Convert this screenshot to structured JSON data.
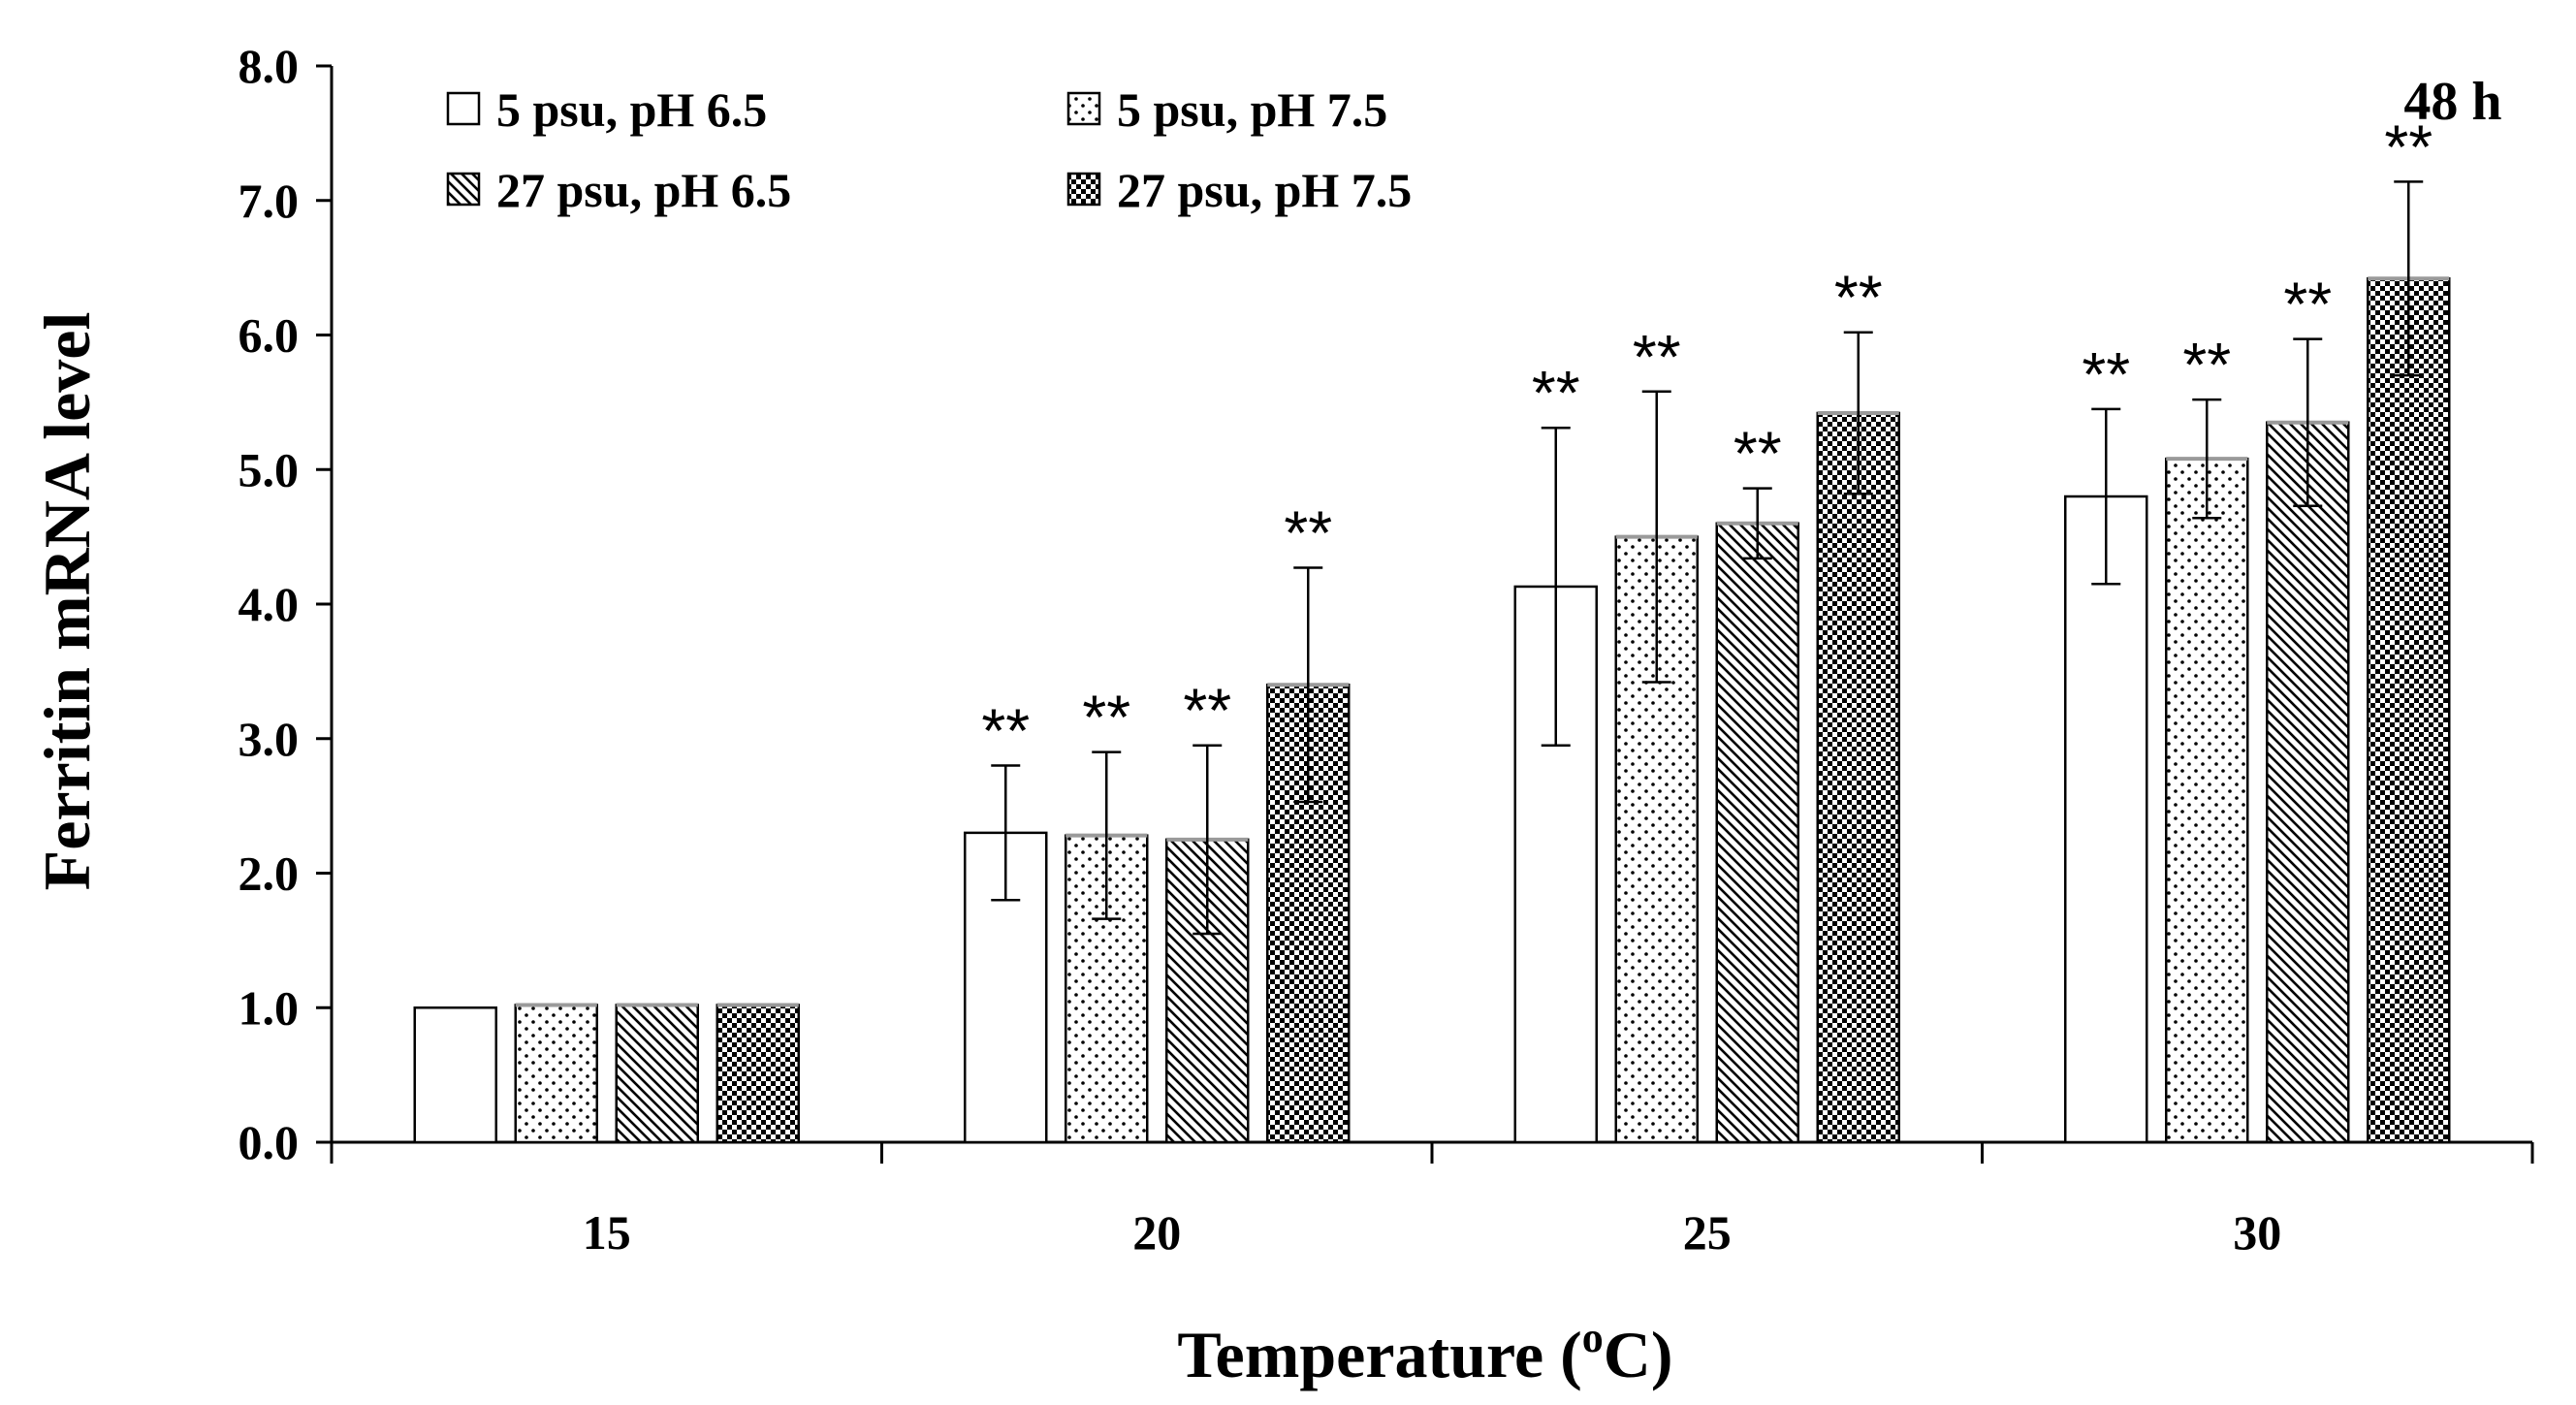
{
  "chart_data": {
    "type": "bar",
    "title": "",
    "annotation": "48 h",
    "xlabel": "Temperature (°C)",
    "xlabel_main": "Temperature (",
    "xlabel_sup": "o",
    "xlabel_tail": "C)",
    "ylabel": "Ferritin  mRNA  level",
    "ylim": [
      0,
      8
    ],
    "yticks": [
      "0.0",
      "1.0",
      "2.0",
      "3.0",
      "4.0",
      "5.0",
      "6.0",
      "7.0",
      "8.0"
    ],
    "categories": [
      "15",
      "20",
      "25",
      "30"
    ],
    "significance_marker": "**",
    "legend_position": "top-left",
    "series": [
      {
        "name": "5 psu, pH 6.5",
        "pattern": "none",
        "values": [
          1.0,
          2.3,
          4.13,
          4.8
        ],
        "errors": [
          0.0,
          0.5,
          1.18,
          0.65
        ],
        "significant": [
          false,
          true,
          true,
          true
        ]
      },
      {
        "name": "5 psu, pH 7.5",
        "pattern": "dots",
        "values": [
          1.02,
          2.28,
          4.5,
          5.08
        ],
        "errors": [
          0.0,
          0.62,
          1.08,
          0.44
        ],
        "significant": [
          false,
          true,
          true,
          true
        ]
      },
      {
        "name": "27 psu, pH 6.5",
        "pattern": "diagonal",
        "values": [
          1.02,
          2.25,
          4.6,
          5.35
        ],
        "errors": [
          0.0,
          0.7,
          0.26,
          0.62
        ],
        "significant": [
          false,
          true,
          true,
          true
        ]
      },
      {
        "name": "27 psu, pH 7.5",
        "pattern": "checker",
        "values": [
          1.02,
          3.4,
          5.42,
          6.42
        ],
        "errors": [
          0.0,
          0.87,
          0.6,
          0.72
        ],
        "significant": [
          false,
          true,
          true,
          true
        ]
      }
    ]
  }
}
